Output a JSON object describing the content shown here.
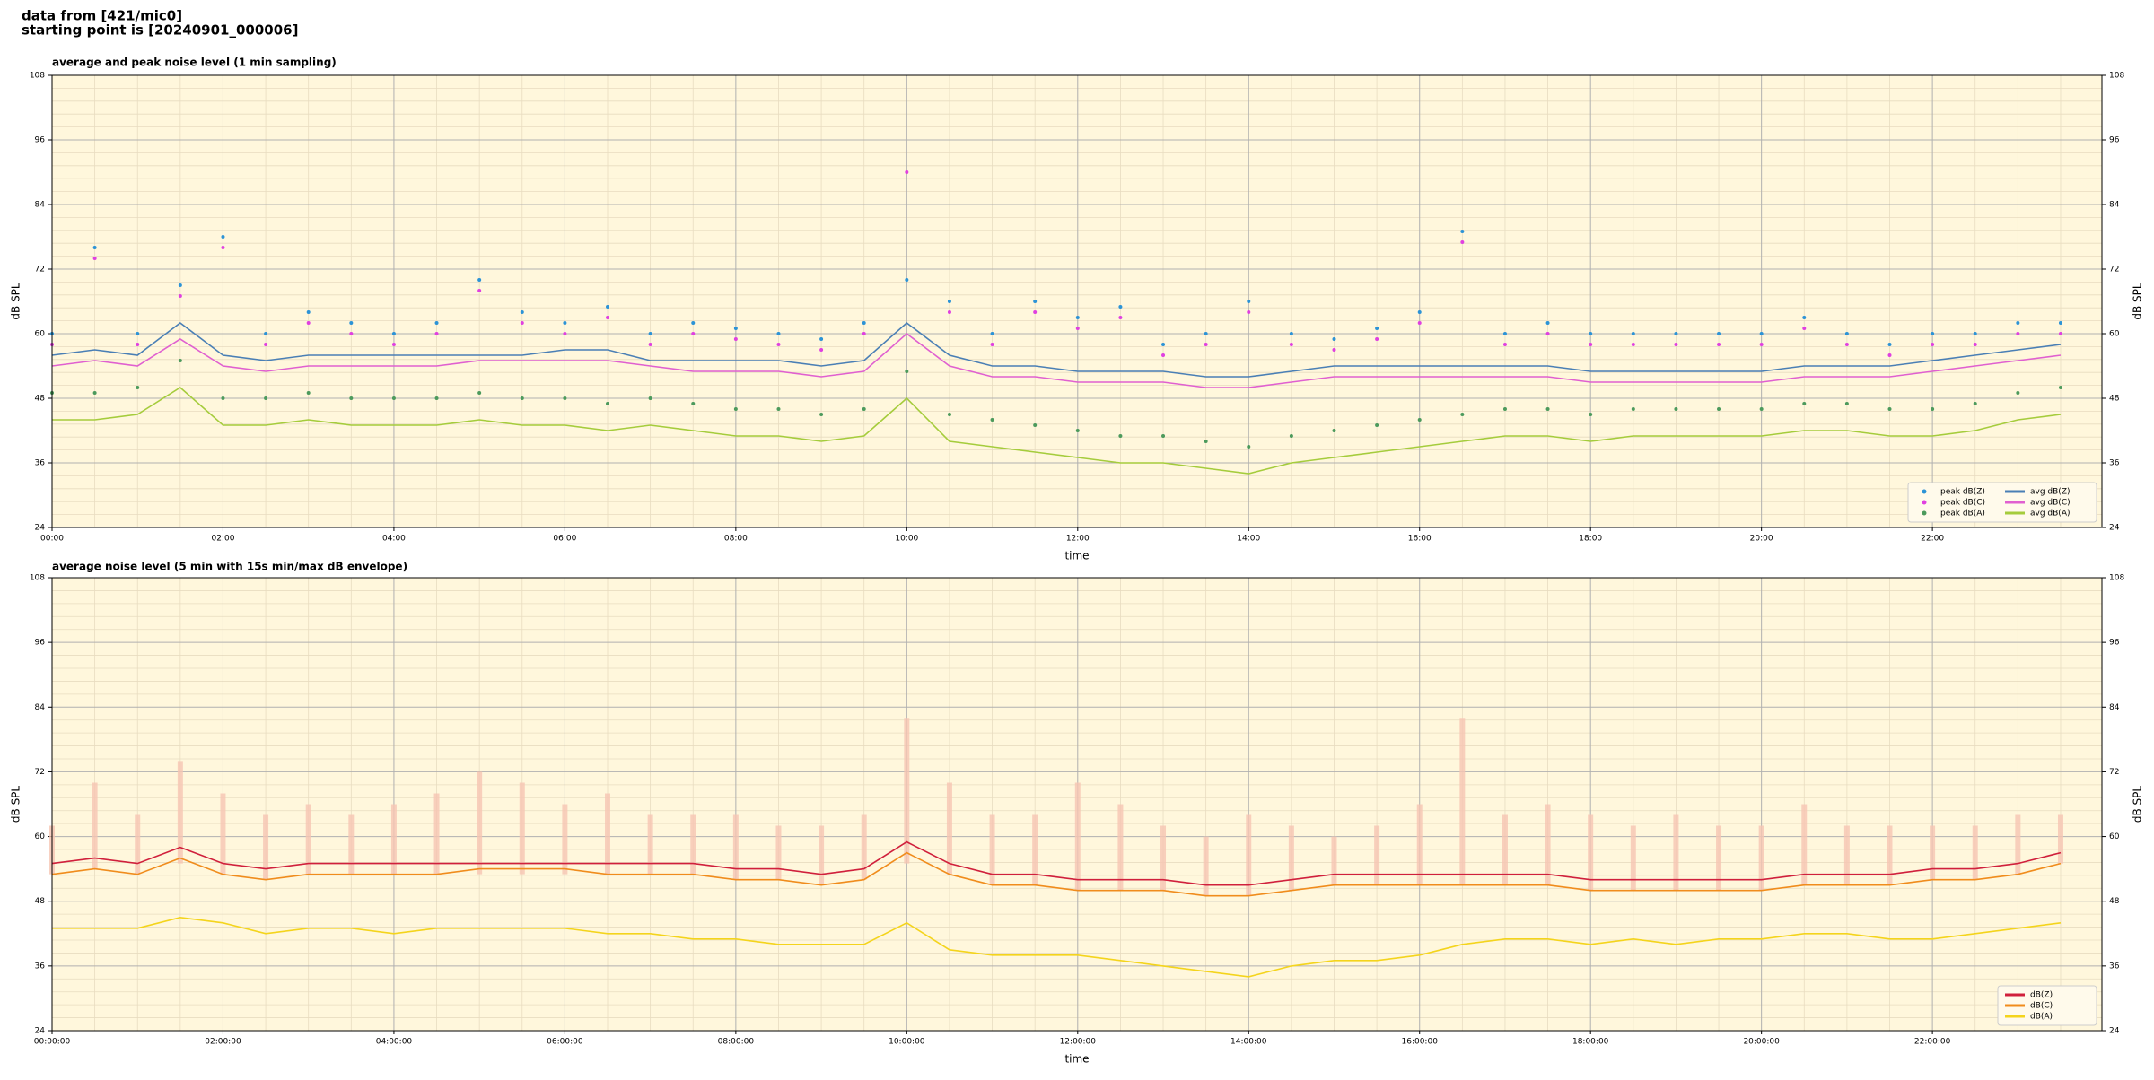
{
  "header": {
    "line1": "data from [421/mic0]",
    "line2": "starting point is [20240901_000006]"
  },
  "chart_data": [
    {
      "type": "line",
      "title": "average and peak noise level (1 min sampling)",
      "xlabel": "time",
      "ylabel": "dB SPL",
      "xlim": [
        0,
        1439
      ],
      "ylim": [
        24,
        108
      ],
      "yticks": [
        24,
        36,
        48,
        60,
        72,
        84,
        96,
        108
      ],
      "xticks": [
        {
          "value": 0,
          "label": "00:00"
        },
        {
          "value": 120,
          "label": "02:00"
        },
        {
          "value": 240,
          "label": "04:00"
        },
        {
          "value": 360,
          "label": "06:00"
        },
        {
          "value": 480,
          "label": "08:00"
        },
        {
          "value": 600,
          "label": "10:00"
        },
        {
          "value": 720,
          "label": "12:00"
        },
        {
          "value": 840,
          "label": "14:00"
        },
        {
          "value": 960,
          "label": "16:00"
        },
        {
          "value": 1080,
          "label": "18:00"
        },
        {
          "value": 1200,
          "label": "20:00"
        },
        {
          "value": 1320,
          "label": "22:00"
        }
      ],
      "grid": true,
      "legend": "lower right",
      "legend_columns": 2,
      "background": "#fff7dc",
      "x": [
        0,
        30,
        60,
        90,
        120,
        150,
        180,
        210,
        240,
        270,
        300,
        330,
        360,
        390,
        420,
        450,
        480,
        510,
        540,
        570,
        600,
        630,
        660,
        690,
        720,
        750,
        780,
        810,
        840,
        870,
        900,
        930,
        960,
        990,
        1020,
        1050,
        1080,
        1110,
        1140,
        1170,
        1200,
        1230,
        1260,
        1290,
        1320,
        1350,
        1380,
        1410
      ],
      "series": [
        {
          "name": "peak dB(Z)",
          "color": "#2c93d6",
          "marker": "dot",
          "values": [
            60,
            76,
            60,
            69,
            78,
            60,
            64,
            62,
            60,
            62,
            70,
            64,
            62,
            65,
            60,
            62,
            61,
            60,
            59,
            62,
            70,
            66,
            60,
            66,
            63,
            65,
            58,
            60,
            66,
            60,
            59,
            61,
            64,
            79,
            60,
            62,
            60,
            60,
            60,
            60,
            60,
            63,
            60,
            58,
            60,
            60,
            62,
            62
          ]
        },
        {
          "name": "peak dB(C)",
          "color": "#e040e0",
          "marker": "dot",
          "values": [
            58,
            74,
            58,
            67,
            76,
            58,
            62,
            60,
            58,
            60,
            68,
            62,
            60,
            63,
            58,
            60,
            59,
            58,
            57,
            60,
            90,
            64,
            58,
            64,
            61,
            63,
            56,
            58,
            64,
            58,
            57,
            59,
            62,
            77,
            58,
            60,
            58,
            58,
            58,
            58,
            58,
            61,
            58,
            56,
            58,
            58,
            60,
            60
          ]
        },
        {
          "name": "peak dB(A)",
          "color": "#4c9a5c",
          "marker": "dot",
          "values": [
            49,
            49,
            50,
            55,
            48,
            48,
            49,
            48,
            48,
            48,
            49,
            48,
            48,
            47,
            48,
            47,
            46,
            46,
            45,
            46,
            53,
            45,
            44,
            43,
            42,
            41,
            41,
            40,
            39,
            41,
            42,
            43,
            44,
            45,
            46,
            46,
            45,
            46,
            46,
            46,
            46,
            47,
            47,
            46,
            46,
            47,
            49,
            50
          ]
        },
        {
          "name": "avg dB(Z)",
          "color": "#4a7fb5",
          "marker": "line",
          "values": [
            56,
            57,
            56,
            62,
            56,
            55,
            56,
            56,
            56,
            56,
            56,
            56,
            57,
            57,
            55,
            55,
            55,
            55,
            54,
            55,
            62,
            56,
            54,
            54,
            53,
            53,
            53,
            52,
            52,
            53,
            54,
            54,
            54,
            54,
            54,
            54,
            53,
            53,
            53,
            53,
            53,
            54,
            54,
            54,
            55,
            56,
            57,
            58
          ]
        },
        {
          "name": "avg dB(C)",
          "color": "#e060d0",
          "marker": "line",
          "values": [
            54,
            55,
            54,
            59,
            54,
            53,
            54,
            54,
            54,
            54,
            55,
            55,
            55,
            55,
            54,
            53,
            53,
            53,
            52,
            53,
            60,
            54,
            52,
            52,
            51,
            51,
            51,
            50,
            50,
            51,
            52,
            52,
            52,
            52,
            52,
            52,
            51,
            51,
            51,
            51,
            51,
            52,
            52,
            52,
            53,
            54,
            55,
            56
          ]
        },
        {
          "name": "avg dB(A)",
          "color": "#a5cc3c",
          "marker": "line",
          "values": [
            44,
            44,
            45,
            50,
            43,
            43,
            44,
            43,
            43,
            43,
            44,
            43,
            43,
            42,
            43,
            42,
            41,
            41,
            40,
            41,
            48,
            40,
            39,
            38,
            37,
            36,
            36,
            35,
            34,
            36,
            37,
            38,
            39,
            40,
            41,
            41,
            40,
            41,
            41,
            41,
            41,
            42,
            42,
            41,
            41,
            42,
            44,
            45
          ]
        }
      ]
    },
    {
      "type": "line",
      "title": "average noise level (5 min with 15s min/max dB envelope)",
      "xlabel": "time",
      "ylabel": "dB SPL",
      "xlim": [
        0,
        1439
      ],
      "ylim": [
        24,
        108
      ],
      "yticks": [
        24,
        36,
        48,
        60,
        72,
        84,
        96,
        108
      ],
      "xticks": [
        {
          "value": 0,
          "label": "00:00:00"
        },
        {
          "value": 120,
          "label": "02:00:00"
        },
        {
          "value": 240,
          "label": "04:00:00"
        },
        {
          "value": 360,
          "label": "06:00:00"
        },
        {
          "value": 480,
          "label": "08:00:00"
        },
        {
          "value": 600,
          "label": "10:00:00"
        },
        {
          "value": 720,
          "label": "12:00:00"
        },
        {
          "value": 840,
          "label": "14:00:00"
        },
        {
          "value": 960,
          "label": "16:00:00"
        },
        {
          "value": 1080,
          "label": "18:00:00"
        },
        {
          "value": 1200,
          "label": "20:00:00"
        },
        {
          "value": 1320,
          "label": "22:00:00"
        }
      ],
      "grid": true,
      "legend": "lower right",
      "legend_columns": 1,
      "background": "#fff7dc",
      "x": [
        0,
        30,
        60,
        90,
        120,
        150,
        180,
        210,
        240,
        270,
        300,
        330,
        360,
        390,
        420,
        450,
        480,
        510,
        540,
        570,
        600,
        630,
        660,
        690,
        720,
        750,
        780,
        810,
        840,
        870,
        900,
        930,
        960,
        990,
        1020,
        1050,
        1080,
        1110,
        1140,
        1170,
        1200,
        1230,
        1260,
        1290,
        1320,
        1350,
        1380,
        1410
      ],
      "envelope": {
        "color": "#f7c6b4",
        "high": [
          62,
          70,
          64,
          74,
          68,
          64,
          66,
          64,
          66,
          68,
          72,
          70,
          66,
          68,
          64,
          64,
          64,
          62,
          62,
          64,
          82,
          70,
          64,
          64,
          70,
          66,
          62,
          60,
          64,
          62,
          60,
          62,
          66,
          82,
          64,
          66,
          64,
          62,
          64,
          62,
          62,
          66,
          62,
          62,
          62,
          62,
          64,
          64
        ],
        "low": [
          53,
          54,
          53,
          55,
          53,
          52,
          53,
          53,
          53,
          53,
          53,
          53,
          53,
          53,
          53,
          53,
          52,
          52,
          51,
          52,
          55,
          53,
          51,
          51,
          50,
          50,
          50,
          49,
          49,
          50,
          51,
          51,
          51,
          51,
          51,
          51,
          50,
          50,
          50,
          50,
          50,
          51,
          51,
          51,
          52,
          52,
          53,
          55
        ]
      },
      "series": [
        {
          "name": "dB(Z)",
          "color": "#d0203c",
          "marker": "line",
          "values": [
            55,
            56,
            55,
            58,
            55,
            54,
            55,
            55,
            55,
            55,
            55,
            55,
            55,
            55,
            55,
            55,
            54,
            54,
            53,
            54,
            59,
            55,
            53,
            53,
            52,
            52,
            52,
            51,
            51,
            52,
            53,
            53,
            53,
            53,
            53,
            53,
            52,
            52,
            52,
            52,
            52,
            53,
            53,
            53,
            54,
            54,
            55,
            57
          ]
        },
        {
          "name": "dB(C)",
          "color": "#f08c1c",
          "marker": "line",
          "values": [
            53,
            54,
            53,
            56,
            53,
            52,
            53,
            53,
            53,
            53,
            54,
            54,
            54,
            53,
            53,
            53,
            52,
            52,
            51,
            52,
            57,
            53,
            51,
            51,
            50,
            50,
            50,
            49,
            49,
            50,
            51,
            51,
            51,
            51,
            51,
            51,
            50,
            50,
            50,
            50,
            50,
            51,
            51,
            51,
            52,
            52,
            53,
            55
          ]
        },
        {
          "name": "dB(A)",
          "color": "#f4d41c",
          "marker": "line",
          "values": [
            43,
            43,
            43,
            45,
            44,
            42,
            43,
            43,
            42,
            43,
            43,
            43,
            43,
            42,
            42,
            41,
            41,
            40,
            40,
            40,
            44,
            39,
            38,
            38,
            38,
            37,
            36,
            35,
            34,
            36,
            37,
            37,
            38,
            40,
            41,
            41,
            40,
            41,
            40,
            41,
            41,
            42,
            42,
            41,
            41,
            42,
            43,
            44
          ]
        }
      ]
    }
  ]
}
